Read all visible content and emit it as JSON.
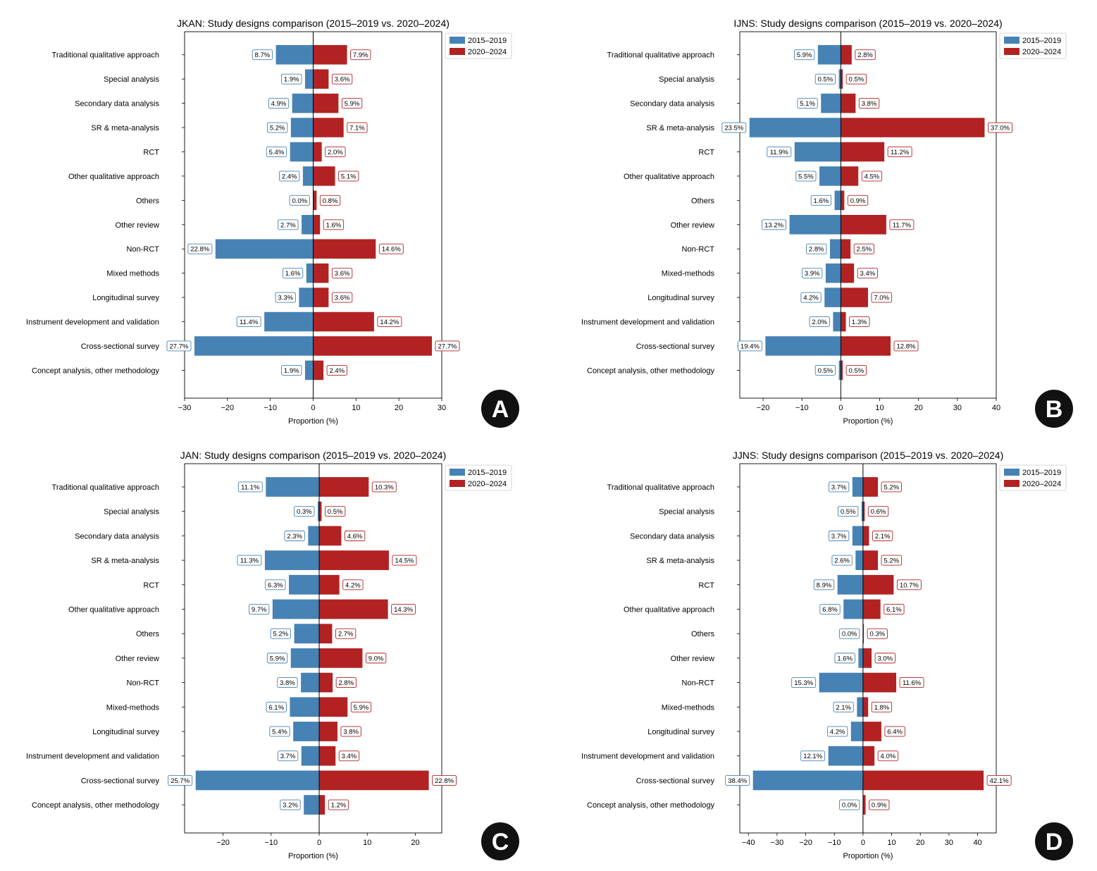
{
  "legend": {
    "series_1": "2015–2019",
    "series_2": "2020–2024"
  },
  "colors": {
    "series_1": "#4682b4",
    "series_2": "#b22222",
    "axis": "#000000",
    "badge": "#111111"
  },
  "xlabel": "Proportion (%)",
  "chart_data": [
    {
      "panel": "A",
      "type": "bar",
      "orientation": "horizontal-diverging",
      "title": "JKAN: Study designs comparison (2015–2019 vs. 2020–2024)",
      "xlabel": "Proportion (%)",
      "xlim": [
        -30,
        30
      ],
      "xticks": [
        -30,
        -20,
        -10,
        0,
        10,
        20,
        30
      ],
      "xtick_labels": [
        "−30",
        "−20",
        "−10",
        "0",
        "10",
        "20",
        "30"
      ],
      "legend_position": "top-right",
      "categories": [
        "Traditional qualitative approach",
        "Special analysis",
        "Secondary data analysis",
        "SR & meta-analysis",
        "RCT",
        "Other qualitative approach",
        "Others",
        "Other review",
        "Non-RCT",
        "Mixed methods",
        "Longitudinal survey",
        "Instrument development and validation",
        "Cross-sectional survey",
        "Concept analysis, other methodology"
      ],
      "series": [
        {
          "name": "2015–2019",
          "values": [
            8.7,
            1.9,
            4.9,
            5.2,
            5.4,
            2.4,
            0.0,
            2.7,
            22.8,
            1.6,
            3.3,
            11.4,
            27.7,
            1.9
          ],
          "labels": [
            "8.7%",
            "1.9%",
            "4.9%",
            "5.2%",
            "5.4%",
            "2.4%",
            "0.0%",
            "2.7%",
            "22.8%",
            "1.6%",
            "3.3%",
            "11.4%",
            "27.7%",
            "1.9%"
          ]
        },
        {
          "name": "2020–2024",
          "values": [
            7.9,
            3.6,
            5.9,
            7.1,
            2.0,
            5.1,
            0.8,
            1.6,
            14.6,
            3.6,
            3.6,
            14.2,
            27.7,
            2.4
          ],
          "labels": [
            "7.9%",
            "3.6%",
            "5.9%",
            "7.1%",
            "2.0%",
            "5.1%",
            "0.8%",
            "1.6%",
            "14.6%",
            "3.6%",
            "3.6%",
            "14.2%",
            "27.7%",
            "2.4%"
          ]
        }
      ]
    },
    {
      "panel": "B",
      "type": "bar",
      "orientation": "horizontal-diverging",
      "title": "IJNS: Study designs comparison (2015–2019 vs. 2020–2024)",
      "xlabel": "Proportion (%)",
      "xlim": [
        -26,
        40
      ],
      "xticks": [
        -20,
        -10,
        0,
        10,
        20,
        30,
        40
      ],
      "xtick_labels": [
        "−20",
        "−10",
        "0",
        "10",
        "20",
        "30",
        "40"
      ],
      "legend_position": "top-right",
      "categories": [
        "Traditional qualitative approach",
        "Special analysis",
        "Secondary data analysis",
        "SR & meta-analysis",
        "RCT",
        "Other qualitative approach",
        "Others",
        "Other review",
        "Non-RCT",
        "Mixed-methods",
        "Longitudinal survey",
        "Instrument development and validation",
        "Cross-sectional survey",
        "Concept analysis, other methodology"
      ],
      "series": [
        {
          "name": "2015–2019",
          "values": [
            5.9,
            0.5,
            5.1,
            23.5,
            11.9,
            5.5,
            1.6,
            13.2,
            2.8,
            3.9,
            4.2,
            2.0,
            19.4,
            0.5
          ],
          "labels": [
            "5.9%",
            "0.5%",
            "5.1%",
            "23.5%",
            "11.9%",
            "5.5%",
            "1.6%",
            "13.2%",
            "2.8%",
            "3.9%",
            "4.2%",
            "2.0%",
            "19.4%",
            "0.5%"
          ]
        },
        {
          "name": "2020–2024",
          "values": [
            2.8,
            0.5,
            3.8,
            37.0,
            11.2,
            4.5,
            0.9,
            11.7,
            2.5,
            3.4,
            7.0,
            1.3,
            12.8,
            0.5
          ],
          "labels": [
            "2.8%",
            "0.5%",
            "3.8%",
            "37.0%",
            "11.2%",
            "4.5%",
            "0.9%",
            "11.7%",
            "2.5%",
            "3.4%",
            "7.0%",
            "1.3%",
            "12.8%",
            "0.5%"
          ]
        }
      ]
    },
    {
      "panel": "C",
      "type": "bar",
      "orientation": "horizontal-diverging",
      "title": "JAN: Study designs comparison (2015–2019 vs. 2020–2024)",
      "xlabel": "Proportion (%)",
      "xlim": [
        -28,
        25.5
      ],
      "xticks": [
        -20,
        -10,
        0,
        10,
        20
      ],
      "xtick_labels": [
        "−20",
        "−10",
        "0",
        "10",
        "20"
      ],
      "legend_position": "top-right",
      "categories": [
        "Traditional qualitative approach",
        "Special analysis",
        "Secondary data analysis",
        "SR & meta-analysis",
        "RCT",
        "Other qualitative approach",
        "Others",
        "Other review",
        "Non-RCT",
        "Mixed-methods",
        "Longitudinal survey",
        "Instrument development and validation",
        "Cross-sectional survey",
        "Concept analysis, other methodology"
      ],
      "series": [
        {
          "name": "2015–2019",
          "values": [
            11.1,
            0.3,
            2.3,
            11.3,
            6.3,
            9.7,
            5.2,
            5.9,
            3.8,
            6.1,
            5.4,
            3.7,
            25.7,
            3.2
          ],
          "labels": [
            "11.1%",
            "0.3%",
            "2.3%",
            "11.3%",
            "6.3%",
            "9.7%",
            "5.2%",
            "5.9%",
            "3.8%",
            "6.1%",
            "5.4%",
            "3.7%",
            "25.7%",
            "3.2%"
          ]
        },
        {
          "name": "2020–2024",
          "values": [
            10.3,
            0.5,
            4.6,
            14.5,
            4.2,
            14.3,
            2.7,
            9.0,
            2.8,
            5.9,
            3.8,
            3.4,
            22.8,
            1.2
          ],
          "labels": [
            "10.3%",
            "0.5%",
            "4.6%",
            "14.5%",
            "4.2%",
            "14.3%",
            "2.7%",
            "9.0%",
            "2.8%",
            "5.9%",
            "3.8%",
            "3.4%",
            "22.8%",
            "1.2%"
          ]
        }
      ]
    },
    {
      "panel": "D",
      "type": "bar",
      "orientation": "horizontal-diverging",
      "title": "JJNS: Study designs comparison (2015–2019 vs. 2020–2024)",
      "xlabel": "Proportion (%)",
      "xlim": [
        -43,
        46.5
      ],
      "xticks": [
        -40,
        -30,
        -20,
        -10,
        0,
        10,
        20,
        30,
        40
      ],
      "xtick_labels": [
        "−40",
        "−30",
        "−20",
        "−10",
        "0",
        "10",
        "20",
        "30",
        "40"
      ],
      "legend_position": "top-right",
      "categories": [
        "Traditional qualitative approach",
        "Special analysis",
        "Secondary data analysis",
        "SR & meta-analysis",
        "RCT",
        "Other qualitative approach",
        "Others",
        "Other review",
        "Non-RCT",
        "Mixed-methods",
        "Longitudinal survey",
        "Instrument development and validation",
        "Cross-sectional survey",
        "Concept analysis, other methodology"
      ],
      "series": [
        {
          "name": "2015–2019",
          "values": [
            3.7,
            0.5,
            3.7,
            2.6,
            8.9,
            6.8,
            0.0,
            1.6,
            15.3,
            2.1,
            4.2,
            12.1,
            38.4,
            0.0
          ],
          "labels": [
            "3.7%",
            "0.5%",
            "3.7%",
            "2.6%",
            "8.9%",
            "6.8%",
            "0.0%",
            "1.6%",
            "15.3%",
            "2.1%",
            "4.2%",
            "12.1%",
            "38.4%",
            "0.0%"
          ]
        },
        {
          "name": "2020–2024",
          "values": [
            5.2,
            0.6,
            2.1,
            5.2,
            10.7,
            6.1,
            0.3,
            3.0,
            11.6,
            1.8,
            6.4,
            4.0,
            42.1,
            0.9
          ],
          "labels": [
            "5.2%",
            "0.6%",
            "2.1%",
            "5.2%",
            "10.7%",
            "6.1%",
            "0.3%",
            "3.0%",
            "11.6%",
            "1.8%",
            "6.4%",
            "4.0%",
            "42.1%",
            "0.9%"
          ]
        }
      ]
    }
  ]
}
